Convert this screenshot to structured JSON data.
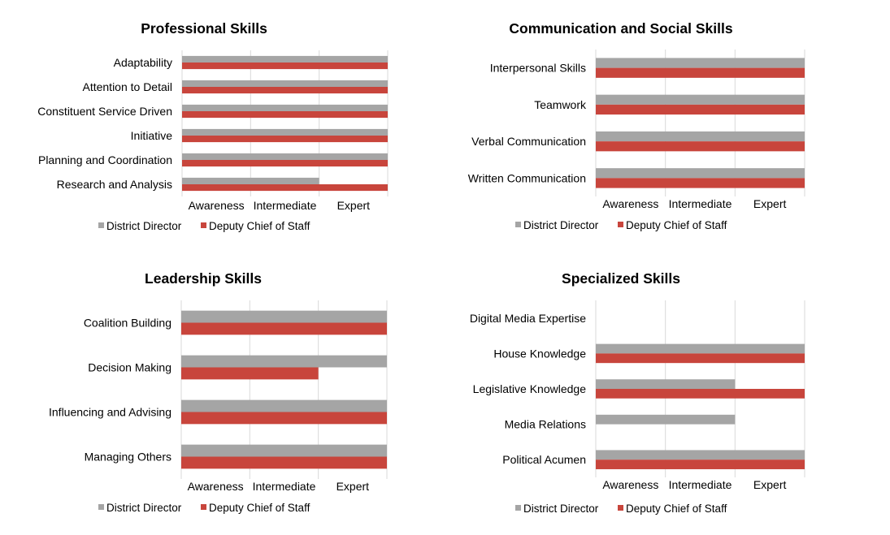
{
  "colors": {
    "district_director": "#a5a5a5",
    "deputy_chief": "#c8453c",
    "gridline": "#d9d9d9"
  },
  "chart_data": [
    {
      "type": "bar",
      "orientation": "horizontal",
      "title": "Professional Skills",
      "categories": [
        "Adaptability",
        "Attention to Detail",
        "Constituent Service Driven",
        "Initiative",
        "Planning and Coordination",
        "Research and Analysis"
      ],
      "x_ticks": [
        "Awareness",
        "Intermediate",
        "Expert"
      ],
      "xlim": [
        0,
        3
      ],
      "grid": "vertical",
      "legend_position": "bottom",
      "series": [
        {
          "name": "District Director",
          "color": "#a5a5a5",
          "values": [
            3,
            3,
            3,
            3,
            3,
            2
          ]
        },
        {
          "name": "Deputy Chief of Staff",
          "color": "#c8453c",
          "values": [
            3,
            3,
            3,
            3,
            3,
            3
          ]
        }
      ]
    },
    {
      "type": "bar",
      "orientation": "horizontal",
      "title": "Communication and Social Skills",
      "categories": [
        "Interpersonal Skills",
        "Teamwork",
        "Verbal Communication",
        "Written Communication"
      ],
      "x_ticks": [
        "Awareness",
        "Intermediate",
        "Expert"
      ],
      "xlim": [
        0,
        3
      ],
      "grid": "vertical",
      "legend_position": "bottom",
      "series": [
        {
          "name": "District Director",
          "color": "#a5a5a5",
          "values": [
            3,
            3,
            3,
            3
          ]
        },
        {
          "name": "Deputy Chief of Staff",
          "color": "#c8453c",
          "values": [
            3,
            3,
            3,
            3
          ]
        }
      ]
    },
    {
      "type": "bar",
      "orientation": "horizontal",
      "title": "Leadership Skills",
      "categories": [
        "Coalition Building",
        "Decision Making",
        "Influencing and Advising",
        "Managing Others"
      ],
      "x_ticks": [
        "Awareness",
        "Intermediate",
        "Expert"
      ],
      "xlim": [
        0,
        3
      ],
      "grid": "vertical",
      "legend_position": "bottom",
      "series": [
        {
          "name": "District Director",
          "color": "#a5a5a5",
          "values": [
            3,
            3,
            3,
            3
          ]
        },
        {
          "name": "Deputy Chief of Staff",
          "color": "#c8453c",
          "values": [
            3,
            2,
            3,
            3
          ]
        }
      ]
    },
    {
      "type": "bar",
      "orientation": "horizontal",
      "title": "Specialized Skills",
      "categories": [
        "Digital Media Expertise",
        "House Knowledge",
        "Legislative Knowledge",
        "Media Relations",
        "Political Acumen"
      ],
      "x_ticks": [
        "Awareness",
        "Intermediate",
        "Expert"
      ],
      "xlim": [
        0,
        3
      ],
      "grid": "vertical",
      "legend_position": "bottom",
      "series": [
        {
          "name": "District Director",
          "color": "#a5a5a5",
          "values": [
            0,
            3,
            2,
            2,
            3
          ]
        },
        {
          "name": "Deputy Chief of Staff",
          "color": "#c8453c",
          "values": [
            0,
            3,
            3,
            0,
            3
          ]
        }
      ]
    }
  ]
}
